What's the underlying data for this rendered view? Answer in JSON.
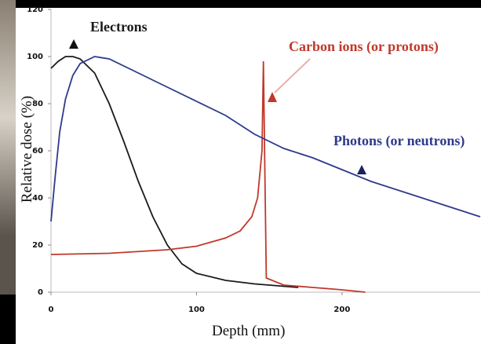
{
  "chart_data": {
    "type": "line",
    "xlabel": "Depth (mm)",
    "ylabel": "Relative dose (%)",
    "xlim": [
      0,
      295
    ],
    "xticks": [
      0,
      100,
      200
    ],
    "ylim": [
      0,
      120
    ],
    "yticks": [
      0,
      20,
      40,
      60,
      80,
      100,
      120
    ],
    "series": [
      {
        "name": "Electrons",
        "color": "#1a1a1a",
        "x": [
          0,
          5,
          10,
          15,
          20,
          30,
          40,
          50,
          60,
          70,
          80,
          90,
          100,
          120,
          140,
          160,
          170
        ],
        "values": [
          95,
          98,
          100,
          100,
          99,
          93,
          80,
          64,
          47,
          32,
          20,
          12,
          8,
          5,
          3.5,
          2.5,
          2
        ]
      },
      {
        "name": "Carbon ions (or protons)",
        "color": "#c0392b",
        "x": [
          0,
          40,
          80,
          100,
          120,
          130,
          138,
          142,
          145,
          146,
          147,
          148,
          160,
          180,
          200,
          216
        ],
        "values": [
          16,
          16.5,
          18,
          19.5,
          23,
          26,
          32,
          40,
          60,
          98,
          50,
          6,
          3,
          2,
          1,
          0
        ]
      },
      {
        "name": "Photons (or neutrons)",
        "color": "#2e3a8c",
        "x": [
          0,
          3,
          6,
          10,
          15,
          20,
          30,
          40,
          60,
          80,
          100,
          120,
          140,
          160,
          180,
          200,
          220,
          240,
          260,
          280,
          295
        ],
        "values": [
          30,
          50,
          68,
          82,
          92,
          97,
          100,
          99,
          93,
          87,
          81,
          75,
          67,
          61,
          57,
          52,
          47,
          43,
          39,
          35,
          32
        ]
      }
    ]
  }
}
